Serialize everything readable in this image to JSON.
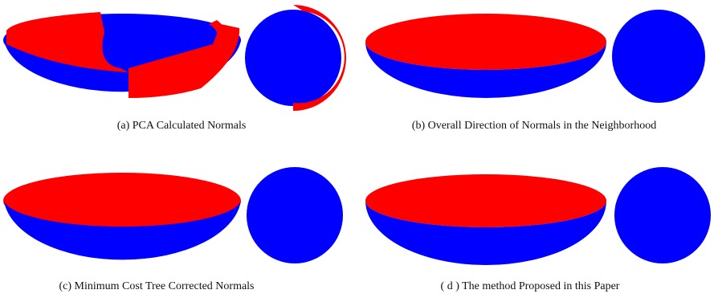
{
  "panels": [
    {
      "caption": "(a) PCA Calculated Normals"
    },
    {
      "caption": "(b) Overall Direction of Normals in the Neighborhood"
    },
    {
      "caption": "(c) Minimum Cost Tree Corrected Normals"
    },
    {
      "caption": "( d ) The method Proposed in this Paper"
    }
  ]
}
